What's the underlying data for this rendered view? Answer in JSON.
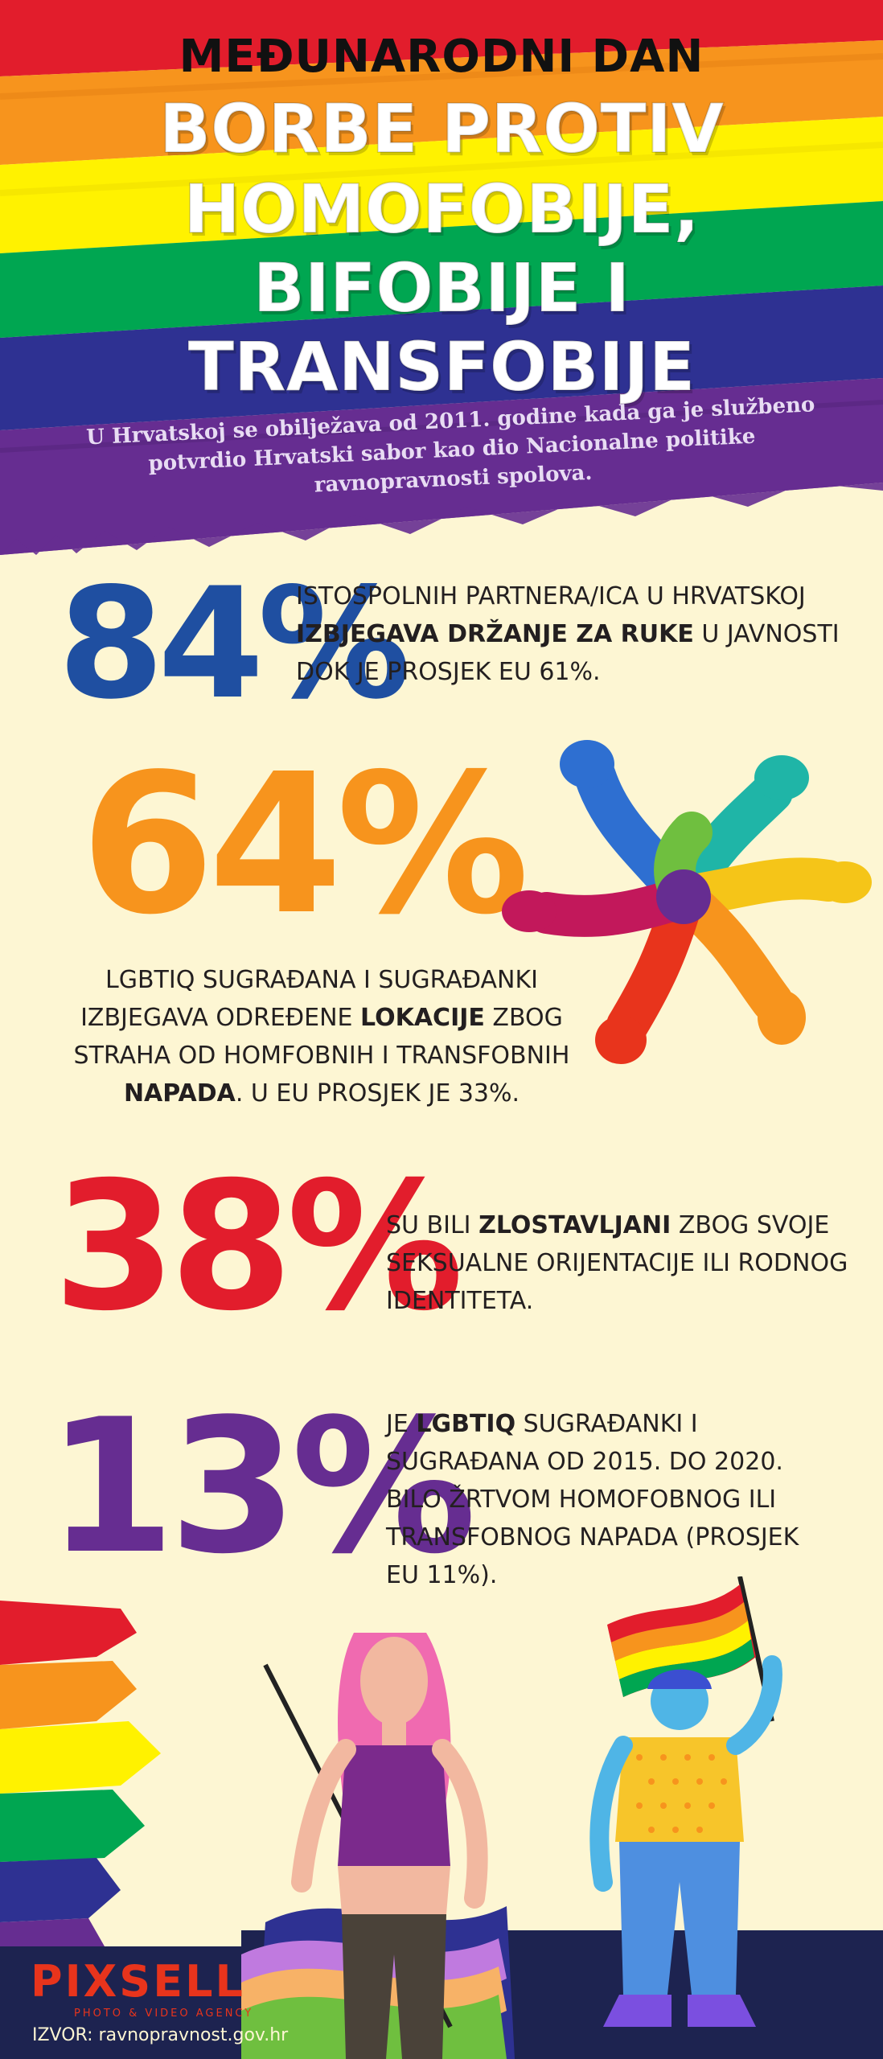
{
  "header": {
    "title_line1": "MEĐUNARODNI DAN",
    "title_line2": "BORBE PROTIV",
    "title_line3": "HOMOFOBIJE,",
    "title_line4": "BIFOBIJE I",
    "title_line5": "TRANSFOBIJE",
    "subtitle": "U Hrvatskoj se obilježava od 2011. godine kada ga je službeno potvrdio Hrvatski sabor kao dio Nacionalne politike ravnopravnosti spolova."
  },
  "stats": [
    {
      "percent": "84%",
      "color": "#1f4fa1",
      "text_before": "ISTOSPOLNIH PARTNERA/ICA U HRVATSKOJ ",
      "text_bold": "IZBJEGAVA DRŽANJE ZA RUKE",
      "text_after": " U JAVNOSTI DOK JE PROSJEK EU 61%."
    },
    {
      "percent": "64%",
      "color": "#f7941d",
      "text_before": "LGBTIQ SUGRAĐANA I SUGRAĐANKI IZBJEGAVA ODREĐENE ",
      "text_bold": "LOKACIJE",
      "text_middle": " ZBOG STRAHA OD HOMFOBNIH I TRANSFOBNIH ",
      "text_bold2": "NAPADA",
      "text_after": ". U EU PROSJEK JE 33%."
    },
    {
      "percent": "38%",
      "color": "#e21d2c",
      "text_before": "SU BILI ",
      "text_bold": "ZLOSTAVLJANI",
      "text_after": " ZBOG SVOJE SEKSUALNE ORIJENTACIJE ILI RODNOG IDENTITETA."
    },
    {
      "percent": "13%",
      "color": "#662d91",
      "text_before": "JE ",
      "text_bold": "LGBTIQ",
      "text_after": " SUGRAĐANKI I SUGRAĐANA OD 2015. DO 2020. BILO ŽRTVOM HOMOFOBNOG ILI TRANSFOBNOG NAPADA (PROSJEK EU 11%)."
    }
  ],
  "footer": {
    "logo": "PIXSELL",
    "tagline": "PHOTO & VIDEO AGENCY",
    "source": "IZVOR: ravnopravnost.gov.hr"
  },
  "colors": {
    "background": "#fdf6d3",
    "rainbow": [
      "#e21d2c",
      "#f7941d",
      "#fff200",
      "#00a651",
      "#2e3192",
      "#662d91"
    ]
  }
}
